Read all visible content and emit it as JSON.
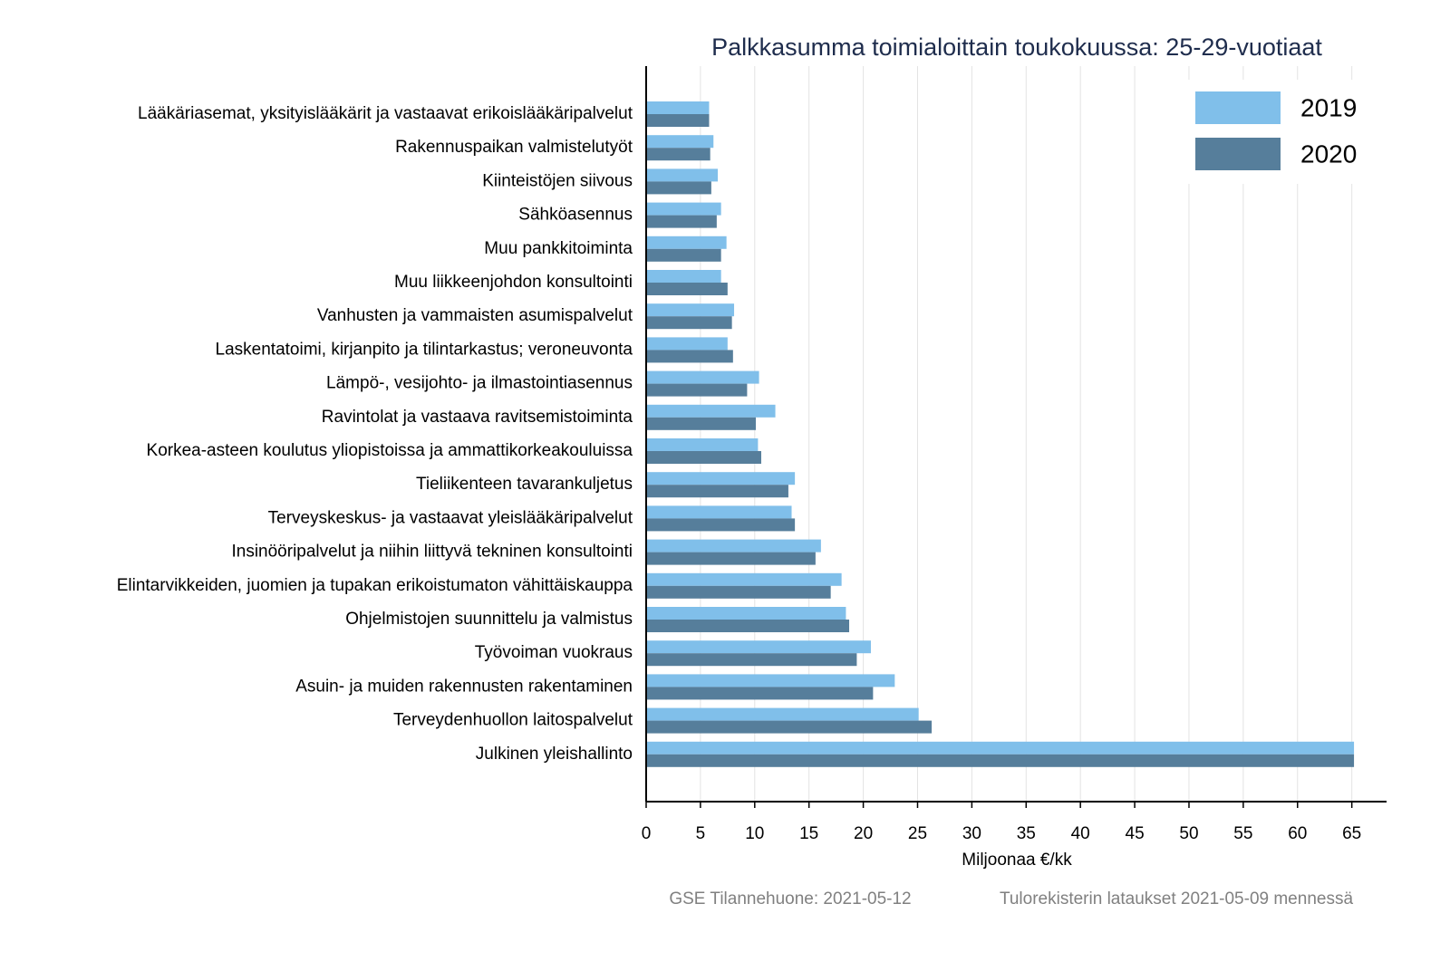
{
  "chart_data": {
    "type": "hbar",
    "title": "Palkkasumma toimialoittain toukokuussa: 25-29-vuotiaat",
    "x_label": "Miljoonaa €/kk",
    "footer": [
      "GSE Tilannehuone: 2021-05-12",
      "Tulorekisterin lataukset 2021-05-09 mennessä"
    ],
    "categories": [
      "Lääkäriasemat, yksityislääkärit ja vastaavat erikoislääkäripalvelut",
      "Rakennuspaikan valmistelutyöt",
      "Kiinteistöjen siivous",
      "Sähköasennus",
      "Muu pankkitoiminta",
      "Muu liikkeenjohdon konsultointi",
      "Vanhusten ja vammaisten asumispalvelut",
      "Laskentatoimi, kirjanpito ja tilintarkastus; veroneuvonta",
      "Lämpö-, vesijohto- ja ilmastointiasennus",
      "Ravintolat ja vastaava ravitsemistoiminta",
      "Korkea-asteen koulutus yliopistoissa ja ammattikorkeakouluissa",
      "Tieliikenteen tavarankuljetus",
      "Terveyskeskus- ja vastaavat yleislääkäripalvelut",
      "Insinööripalvelut ja niihin liittyvä tekninen konsultointi",
      "Elintarvikkeiden, juomien ja tupakan erikoistumaton vähittäiskauppa",
      "Ohjelmistojen suunnittelu ja valmistus",
      "Työvoiman vuokraus",
      "Asuin- ja muiden rakennusten rakentaminen",
      "Terveydenhuollon laitospalvelut",
      "Julkinen yleishallinto"
    ],
    "series": [
      {
        "name": "2019",
        "color": "#80bfea",
        "values": [
          5.8,
          6.2,
          6.6,
          6.9,
          7.4,
          6.9,
          8.1,
          7.5,
          10.4,
          11.9,
          10.3,
          13.7,
          13.4,
          16.1,
          18.0,
          18.4,
          20.7,
          22.9,
          25.1,
          65.2
        ]
      },
      {
        "name": "2020",
        "color": "#567e9b",
        "values": [
          5.8,
          5.9,
          6.0,
          6.5,
          6.9,
          7.5,
          7.9,
          8.0,
          9.3,
          10.1,
          10.6,
          13.1,
          13.7,
          15.6,
          17.0,
          18.7,
          19.4,
          20.9,
          26.3,
          65.2
        ]
      }
    ],
    "xlim": [
      0,
      68.2
    ],
    "xticks": [
      0,
      5,
      10,
      15,
      20,
      25,
      30,
      35,
      40,
      45,
      50,
      55,
      60,
      65
    ],
    "grid": true,
    "legend": "top-right"
  }
}
